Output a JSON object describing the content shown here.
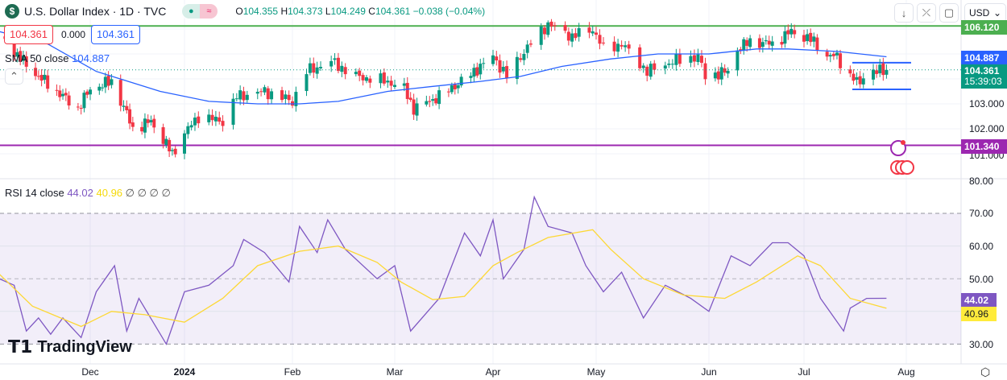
{
  "header": {
    "symbol_icon": "dollar-icon",
    "title": "U.S. Dollar Index · 1D · TVC",
    "open_label": "O",
    "open": "104.355",
    "high_label": "H",
    "high": "104.373",
    "low_label": "L",
    "low": "104.249",
    "close_label": "C",
    "close": "104.361",
    "change": "−0.038 (−0.04%)"
  },
  "order": {
    "sell": "104.361",
    "spread": "0.000",
    "buy": "104.361"
  },
  "sma": {
    "label": "SMA 50 close",
    "value": "104.887"
  },
  "rsi": {
    "label": "RSI 14 close",
    "value": "44.02",
    "ma_value": "40.96",
    "extra": "∅ ∅ ∅ ∅"
  },
  "toolbar": {
    "currency": "USD"
  },
  "price_axis": {
    "green_line": "106.120",
    "sma_tag": "104.887",
    "last": "104.361",
    "countdown": "15:39:03",
    "t103": "103.000",
    "t102": "102.000",
    "t101": "101.000",
    "purple_line": "101.340"
  },
  "rsi_axis": {
    "t80": "80.00",
    "t70": "70.00",
    "t60": "60.00",
    "t50": "50.00",
    "t30": "30.00",
    "rsi_tag": "44.02",
    "ma_tag": "40.96"
  },
  "time_axis": [
    "Dec",
    "2024",
    "Feb",
    "Mar",
    "Apr",
    "May",
    "Jun",
    "Jul",
    "Aug"
  ],
  "brand": "TradingView",
  "colors": {
    "up": "#089981",
    "down": "#f23645",
    "sma": "#2962ff",
    "rsi": "#7e57c2",
    "rsi_ma": "#fdd835",
    "green_line": "#4caf50",
    "purple_line": "#9c27b0"
  },
  "chart_data": {
    "type": "candlestick",
    "price_range": [
      100.5,
      106.4
    ],
    "rsi_range": [
      28,
      82
    ],
    "horizontal_lines": [
      {
        "value": 106.12,
        "color": "#4caf50"
      },
      {
        "value": 101.34,
        "color": "#9c27b0"
      }
    ],
    "channel_lines": [
      104.65,
      103.58
    ],
    "close_anchors": [
      [
        "2023-11-03",
        105.5
      ],
      [
        "2023-11-12",
        104.3
      ],
      [
        "2023-11-17",
        103.8
      ],
      [
        "2023-11-27",
        102.8
      ],
      [
        "2023-12-01",
        103.6
      ],
      [
        "2023-12-08",
        103.9
      ],
      [
        "2023-12-13",
        102.6
      ],
      [
        "2023-12-15",
        102.0
      ],
      [
        "2023-12-21",
        102.3
      ],
      [
        "2023-12-28",
        101.0
      ],
      [
        "2024-01-02",
        102.0
      ],
      [
        "2024-01-05",
        102.5
      ],
      [
        "2024-01-12",
        102.3
      ],
      [
        "2024-01-16",
        103.3
      ],
      [
        "2024-01-24",
        103.5
      ],
      [
        "2024-02-01",
        103.1
      ],
      [
        "2024-02-05",
        104.3
      ],
      [
        "2024-02-12",
        104.7
      ],
      [
        "2024-02-19",
        104.1
      ],
      [
        "2024-02-28",
        103.9
      ],
      [
        "2024-03-04",
        103.6
      ],
      [
        "2024-03-07",
        102.8
      ],
      [
        "2024-03-15",
        103.3
      ],
      [
        "2024-03-22",
        103.9
      ],
      [
        "2024-04-01",
        104.9
      ],
      [
        "2024-04-05",
        104.1
      ],
      [
        "2024-04-10",
        105.1
      ],
      [
        "2024-04-15",
        105.9
      ],
      [
        "2024-04-17",
        106.2
      ],
      [
        "2024-04-24",
        105.7
      ],
      [
        "2024-04-30",
        106.0
      ],
      [
        "2024-05-03",
        105.2
      ],
      [
        "2024-05-08",
        105.4
      ],
      [
        "2024-05-15",
        104.3
      ],
      [
        "2024-05-22",
        104.7
      ],
      [
        "2024-05-29",
        104.9
      ],
      [
        "2024-05-31",
        104.1
      ],
      [
        "2024-06-07",
        104.3
      ],
      [
        "2024-06-10",
        105.2
      ],
      [
        "2024-06-14",
        105.5
      ],
      [
        "2024-06-21",
        105.4
      ],
      [
        "2024-06-27",
        105.9
      ],
      [
        "2024-07-04",
        105.5
      ],
      [
        "2024-07-08",
        104.9
      ],
      [
        "2024-07-11",
        104.9
      ],
      [
        "2024-07-15",
        104.1
      ],
      [
        "2024-07-18",
        103.8
      ],
      [
        "2024-07-19",
        104.2
      ],
      [
        "2024-07-26",
        104.361
      ]
    ],
    "sma50": [
      [
        "2023-11-01",
        105.9
      ],
      [
        "2023-11-17",
        105.4
      ],
      [
        "2023-12-03",
        104.3
      ],
      [
        "2023-12-24",
        103.5
      ],
      [
        "2024-01-08",
        103.1
      ],
      [
        "2024-01-22",
        103.0
      ],
      [
        "2024-02-03",
        103.0
      ],
      [
        "2024-02-14",
        103.1
      ],
      [
        "2024-02-28",
        103.5
      ],
      [
        "2024-03-13",
        103.7
      ],
      [
        "2024-03-28",
        103.9
      ],
      [
        "2024-04-09",
        104.1
      ],
      [
        "2024-04-21",
        104.5
      ],
      [
        "2024-05-05",
        104.8
      ],
      [
        "2024-05-18",
        105.0
      ],
      [
        "2024-06-01",
        105.0
      ],
      [
        "2024-06-16",
        105.2
      ],
      [
        "2024-06-26",
        105.2
      ],
      [
        "2024-07-11",
        105.1
      ],
      [
        "2024-07-26",
        104.887
      ]
    ],
    "rsi14": [
      [
        "2023-11-01",
        50
      ],
      [
        "2023-11-06",
        48
      ],
      [
        "2023-11-10",
        34
      ],
      [
        "2023-11-14",
        38
      ],
      [
        "2023-11-18",
        33
      ],
      [
        "2023-11-22",
        38
      ],
      [
        "2023-11-28",
        32
      ],
      [
        "2023-12-03",
        46
      ],
      [
        "2023-12-09",
        54
      ],
      [
        "2023-12-13",
        34
      ],
      [
        "2023-12-17",
        44
      ],
      [
        "2023-12-26",
        30
      ],
      [
        "2024-01-01",
        46
      ],
      [
        "2024-01-08",
        48
      ],
      [
        "2024-01-15",
        54
      ],
      [
        "2024-01-18",
        62
      ],
      [
        "2024-01-24",
        58
      ],
      [
        "2024-01-31",
        49
      ],
      [
        "2024-02-03",
        66
      ],
      [
        "2024-02-08",
        58
      ],
      [
        "2024-02-11",
        68
      ],
      [
        "2024-02-16",
        59
      ],
      [
        "2024-02-25",
        50
      ],
      [
        "2024-03-01",
        54
      ],
      [
        "2024-03-06",
        34
      ],
      [
        "2024-03-15",
        44
      ],
      [
        "2024-03-23",
        64
      ],
      [
        "2024-03-28",
        57
      ],
      [
        "2024-04-01",
        68
      ],
      [
        "2024-04-04",
        50
      ],
      [
        "2024-04-10",
        59
      ],
      [
        "2024-04-13",
        75
      ],
      [
        "2024-04-17",
        66
      ],
      [
        "2024-04-24",
        64
      ],
      [
        "2024-04-28",
        54
      ],
      [
        "2024-05-03",
        46
      ],
      [
        "2024-05-08",
        52
      ],
      [
        "2024-05-14",
        38
      ],
      [
        "2024-05-20",
        48
      ],
      [
        "2024-05-27",
        44
      ],
      [
        "2024-06-01",
        40
      ],
      [
        "2024-06-08",
        57
      ],
      [
        "2024-06-14",
        54
      ],
      [
        "2024-06-21",
        61
      ],
      [
        "2024-06-26",
        61
      ],
      [
        "2024-07-01",
        57
      ],
      [
        "2024-07-06",
        44
      ],
      [
        "2024-07-13",
        34
      ],
      [
        "2024-07-15",
        41
      ],
      [
        "2024-07-20",
        44
      ],
      [
        "2024-07-26",
        44.02
      ]
    ],
    "rsi_ma": [
      [
        "2023-11-01",
        51.5
      ],
      [
        "2023-11-12",
        41.6
      ],
      [
        "2023-11-28",
        35.4
      ],
      [
        "2023-12-08",
        40
      ],
      [
        "2023-12-19",
        39
      ],
      [
        "2024-01-01",
        36.7
      ],
      [
        "2024-01-12",
        44
      ],
      [
        "2024-01-22",
        54
      ],
      [
        "2024-02-03",
        58.4
      ],
      [
        "2024-02-14",
        60
      ],
      [
        "2024-02-25",
        55
      ],
      [
        "2024-03-03",
        49
      ],
      [
        "2024-03-13",
        43.6
      ],
      [
        "2024-03-23",
        44.6
      ],
      [
        "2024-04-01",
        54
      ],
      [
        "2024-04-08",
        58
      ],
      [
        "2024-04-17",
        62.6
      ],
      [
        "2024-04-30",
        65
      ],
      [
        "2024-05-05",
        59
      ],
      [
        "2024-05-14",
        50
      ],
      [
        "2024-05-25",
        45
      ],
      [
        "2024-06-06",
        44
      ],
      [
        "2024-06-16",
        49
      ],
      [
        "2024-06-29",
        57
      ],
      [
        "2024-07-06",
        54
      ],
      [
        "2024-07-15",
        44
      ],
      [
        "2024-07-26",
        40.96
      ]
    ],
    "rsi_band": [
      30,
      70
    ],
    "rsi_levels": [
      30,
      50,
      70
    ]
  }
}
